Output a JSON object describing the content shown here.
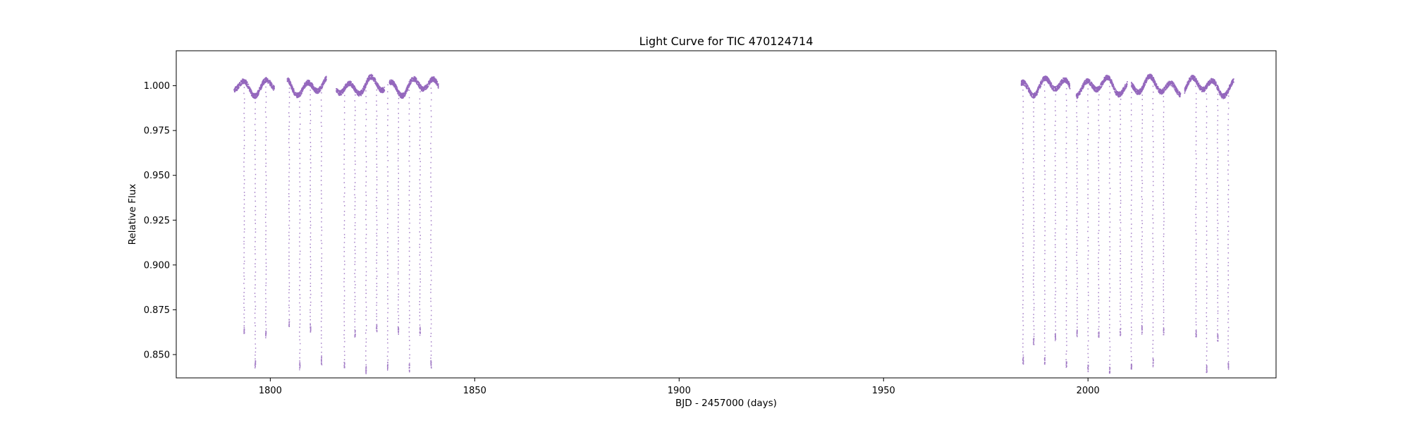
{
  "chart_data": {
    "type": "scatter",
    "title": "Light Curve for TIC 470124714",
    "xlabel": "BJD - 2457000 (days)",
    "ylabel": "Relative Flux",
    "xlim": [
      1777,
      2046
    ],
    "ylim": [
      0.837,
      1.0195
    ],
    "xticks": [
      1800,
      1850,
      1900,
      1950,
      2000
    ],
    "yticks": [
      0.85,
      0.875,
      0.9,
      0.925,
      0.95,
      0.975,
      1.0
    ],
    "ytick_labels": [
      "0.850",
      "0.875",
      "0.900",
      "0.925",
      "0.950",
      "0.975",
      "1.000"
    ],
    "grid": false,
    "legend": "none",
    "marker_color": "#9467bd",
    "segments": [
      {
        "x_start": 1791.0,
        "x_end": 1800.9
      },
      {
        "x_start": 1804.0,
        "x_end": 1813.6
      },
      {
        "x_start": 1816.0,
        "x_end": 1827.8
      },
      {
        "x_start": 1829.0,
        "x_end": 1841.0
      },
      {
        "x_start": 1983.5,
        "x_end": 1995.5
      },
      {
        "x_start": 1997.0,
        "x_end": 2009.5
      },
      {
        "x_start": 2010.5,
        "x_end": 2022.5
      },
      {
        "x_start": 2023.5,
        "x_end": 2035.5
      }
    ],
    "dips": [
      {
        "x": 1793.5,
        "min": 0.862
      },
      {
        "x": 1796.2,
        "min": 0.843
      },
      {
        "x": 1798.8,
        "min": 0.86
      },
      {
        "x": 1804.5,
        "min": 0.866
      },
      {
        "x": 1807.1,
        "min": 0.842
      },
      {
        "x": 1809.7,
        "min": 0.863
      },
      {
        "x": 1812.4,
        "min": 0.845
      },
      {
        "x": 1818.0,
        "min": 0.843
      },
      {
        "x": 1820.6,
        "min": 0.86
      },
      {
        "x": 1823.3,
        "min": 0.84
      },
      {
        "x": 1825.9,
        "min": 0.863
      },
      {
        "x": 1828.6,
        "min": 0.842
      },
      {
        "x": 1831.2,
        "min": 0.862
      },
      {
        "x": 1833.9,
        "min": 0.841
      },
      {
        "x": 1836.5,
        "min": 0.861
      },
      {
        "x": 1839.2,
        "min": 0.843
      },
      {
        "x": 1984.0,
        "min": 0.845
      },
      {
        "x": 1986.6,
        "min": 0.856
      },
      {
        "x": 1989.3,
        "min": 0.845
      },
      {
        "x": 1991.9,
        "min": 0.858
      },
      {
        "x": 1994.6,
        "min": 0.843
      },
      {
        "x": 1997.2,
        "min": 0.86
      },
      {
        "x": 1999.9,
        "min": 0.841
      },
      {
        "x": 2002.5,
        "min": 0.86
      },
      {
        "x": 2005.2,
        "min": 0.84
      },
      {
        "x": 2007.8,
        "min": 0.861
      },
      {
        "x": 2010.5,
        "min": 0.842
      },
      {
        "x": 2013.1,
        "min": 0.862
      },
      {
        "x": 2015.8,
        "min": 0.844
      },
      {
        "x": 2018.4,
        "min": 0.861
      },
      {
        "x": 2026.3,
        "min": 0.86
      },
      {
        "x": 2028.9,
        "min": 0.84
      },
      {
        "x": 2031.6,
        "min": 0.858
      },
      {
        "x": 2034.2,
        "min": 0.842
      }
    ]
  }
}
